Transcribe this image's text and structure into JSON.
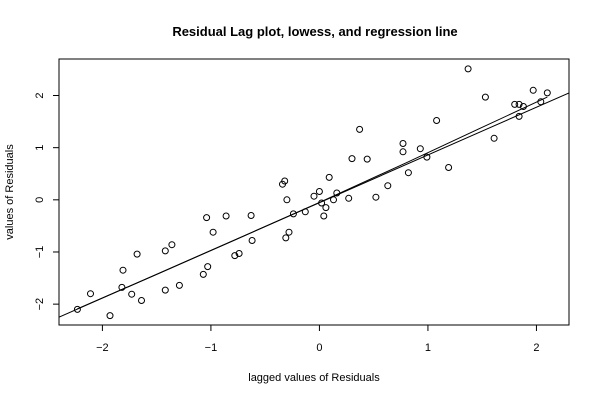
{
  "chart_data": {
    "type": "scatter",
    "title": "Residual Lag plot, lowess, and regression line",
    "xlabel": "lagged values of Residuals",
    "ylabel": "values of Residuals",
    "xlim": [
      -2.4,
      2.3
    ],
    "ylim": [
      -2.4,
      2.7
    ],
    "x_ticks": [
      -2,
      -1,
      0,
      1,
      2
    ],
    "y_ticks": [
      -2,
      -1,
      0,
      1,
      2
    ],
    "x_tick_labels": [
      "−2",
      "−1",
      "0",
      "1",
      "2"
    ],
    "y_tick_labels": [
      "−2",
      "−1",
      "0",
      "1",
      "2"
    ],
    "grid": false,
    "colors": {
      "points": "#000000",
      "lines": "#000000",
      "background": "#ffffff"
    },
    "points": [
      {
        "x": -2.23,
        "y": -2.1
      },
      {
        "x": -2.11,
        "y": -1.8
      },
      {
        "x": -1.93,
        "y": -2.22
      },
      {
        "x": -1.82,
        "y": -1.68
      },
      {
        "x": -1.81,
        "y": -1.35
      },
      {
        "x": -1.73,
        "y": -1.81
      },
      {
        "x": -1.68,
        "y": -1.04
      },
      {
        "x": -1.64,
        "y": -1.93
      },
      {
        "x": -1.42,
        "y": -1.73
      },
      {
        "x": -1.42,
        "y": -0.98
      },
      {
        "x": -1.36,
        "y": -0.86
      },
      {
        "x": -1.29,
        "y": -1.64
      },
      {
        "x": -1.07,
        "y": -1.43
      },
      {
        "x": -1.04,
        "y": -0.34
      },
      {
        "x": -1.03,
        "y": -1.28
      },
      {
        "x": -0.98,
        "y": -0.62
      },
      {
        "x": -0.86,
        "y": -0.31
      },
      {
        "x": -0.78,
        "y": -1.07
      },
      {
        "x": -0.74,
        "y": -1.03
      },
      {
        "x": -0.63,
        "y": -0.3
      },
      {
        "x": -0.62,
        "y": -0.78
      },
      {
        "x": -0.34,
        "y": 0.3
      },
      {
        "x": -0.32,
        "y": 0.36
      },
      {
        "x": -0.31,
        "y": -0.73
      },
      {
        "x": -0.3,
        "y": 0.0
      },
      {
        "x": -0.28,
        "y": -0.62
      },
      {
        "x": -0.24,
        "y": -0.27
      },
      {
        "x": -0.13,
        "y": -0.23
      },
      {
        "x": -0.05,
        "y": 0.07
      },
      {
        "x": 0.0,
        "y": 0.16
      },
      {
        "x": 0.02,
        "y": -0.06
      },
      {
        "x": 0.04,
        "y": -0.31
      },
      {
        "x": 0.06,
        "y": -0.15
      },
      {
        "x": 0.09,
        "y": 0.43
      },
      {
        "x": 0.13,
        "y": 0.0
      },
      {
        "x": 0.16,
        "y": 0.13
      },
      {
        "x": 0.27,
        "y": 0.03
      },
      {
        "x": 0.3,
        "y": 0.79
      },
      {
        "x": 0.37,
        "y": 1.35
      },
      {
        "x": 0.44,
        "y": 0.78
      },
      {
        "x": 0.52,
        "y": 0.05
      },
      {
        "x": 0.63,
        "y": 0.27
      },
      {
        "x": 0.77,
        "y": 1.08
      },
      {
        "x": 0.77,
        "y": 0.92
      },
      {
        "x": 0.82,
        "y": 0.52
      },
      {
        "x": 0.93,
        "y": 0.98
      },
      {
        "x": 0.99,
        "y": 0.82
      },
      {
        "x": 1.08,
        "y": 1.52
      },
      {
        "x": 1.19,
        "y": 0.62
      },
      {
        "x": 1.37,
        "y": 2.51
      },
      {
        "x": 1.53,
        "y": 1.97
      },
      {
        "x": 1.61,
        "y": 1.18
      },
      {
        "x": 1.8,
        "y": 1.83
      },
      {
        "x": 1.84,
        "y": 1.83
      },
      {
        "x": 1.84,
        "y": 1.6
      },
      {
        "x": 1.88,
        "y": 1.79
      },
      {
        "x": 1.97,
        "y": 2.1
      },
      {
        "x": 2.04,
        "y": 1.88
      },
      {
        "x": 2.1,
        "y": 2.05
      }
    ],
    "lines": [
      {
        "kind": "regression",
        "x": [
          -2.4,
          2.3
        ],
        "y": [
          -2.25,
          2.05
        ]
      },
      {
        "kind": "lowess",
        "x": [
          -2.23,
          -1.5,
          -0.8,
          0.0,
          0.8,
          1.5,
          2.1
        ],
        "y": [
          -2.09,
          -1.43,
          -0.79,
          -0.05,
          0.71,
          1.39,
          1.97
        ]
      }
    ]
  }
}
